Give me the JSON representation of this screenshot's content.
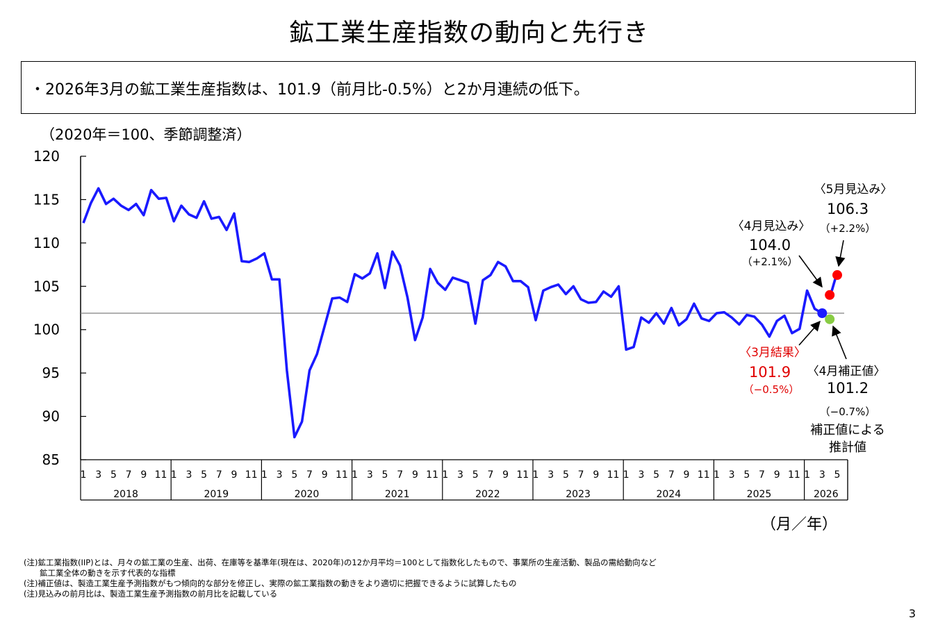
{
  "page": {
    "title": "鉱工業生産指数の動向と先行き",
    "summary": "・2026年3月の鉱工業生産指数は、101.9（前月比-0.5%）と2か月連続の低下。",
    "unit_label": "（2020年＝100、季節調整済）",
    "x_unit_label": "（月／年）",
    "notes": [
      "(注)鉱工業指数(IIP)とは、月々の鉱工業の生産、出荷、在庫等を基準年(現在は、2020年)の12か月平均＝100として指数化したもので、事業所の生産活動、製品の需給動向など",
      "　　鉱工業全体の動きを示す代表的な指標",
      "(注)補正値は、製造工業生産予測指数がもつ傾向的な部分を修正し、実際の鉱工業指数の動きをより適切に把握できるように試算したもの",
      "(注)見込みの前月比は、製造工業生産予測指数の前月比を記載している"
    ],
    "page_number": "3"
  },
  "chart_data": {
    "type": "line",
    "ylim": [
      85,
      120
    ],
    "yticks": [
      120,
      115,
      110,
      105,
      100,
      95,
      90,
      85
    ],
    "month_tick_labels": [
      "1",
      "3",
      "5",
      "7",
      "9",
      "11"
    ],
    "final_year_month_labels": [
      "1",
      "3",
      "5"
    ],
    "years": [
      "2018",
      "2019",
      "2020",
      "2021",
      "2022",
      "2023",
      "2024",
      "2025",
      "2026"
    ],
    "reference_line": 101.9,
    "colors": {
      "line": "#1a1aff",
      "grid": "#808080",
      "result": "#1a1aff",
      "forecast": "#ff0000",
      "adjusted": "#88cc44",
      "red_text": "#e00000"
    },
    "series": [
      {
        "values": [
          112.3,
          114.6,
          116.3,
          114.5,
          115.1,
          114.3,
          113.8,
          114.5,
          113.2,
          116.1,
          115.1,
          115.2,
          112.5,
          114.3,
          113.3,
          112.9,
          114.8,
          112.8,
          113.0,
          111.5,
          113.4,
          107.9,
          107.8,
          108.2,
          108.8,
          105.8,
          105.8,
          95.3,
          87.6,
          89.4,
          95.3,
          97.2,
          100.4,
          103.6,
          103.7,
          103.2,
          106.4,
          105.9,
          106.5,
          108.8,
          104.8,
          109.0,
          107.4,
          103.7,
          98.8,
          101.4,
          107.0,
          105.4,
          104.6,
          106.0,
          105.7,
          105.4,
          100.7,
          105.7,
          106.3,
          107.8,
          107.3,
          105.6,
          105.6,
          104.9,
          101.1,
          104.5,
          104.9,
          105.2,
          104.1,
          105.0,
          103.5,
          103.1,
          103.2,
          104.4,
          103.8,
          105.0,
          97.7,
          98.0,
          101.4,
          100.8,
          101.9,
          100.7,
          102.5,
          100.5,
          101.2,
          103.0,
          101.3,
          101.0,
          101.9,
          102.0,
          101.4,
          100.6,
          101.7,
          101.5,
          100.6,
          99.2,
          101.0,
          101.6,
          99.6,
          100.1,
          104.5,
          102.4,
          101.9
        ]
      }
    ],
    "forecast_segment": {
      "from": 104.0,
      "to": 106.3
    },
    "points": {
      "march_result": {
        "value": 101.9,
        "label": "〈3月結果〉",
        "value_text": "101.9",
        "change_text": "（−0.5%）"
      },
      "april_forecast": {
        "value": 104.0,
        "label": "〈4月見込み〉",
        "value_text": "104.0",
        "change_text": "（+2.1%）"
      },
      "may_forecast": {
        "value": 106.3,
        "label": "〈5月見込み〉",
        "value_text": "106.3",
        "change_text": "（+2.2%）"
      },
      "april_adjusted": {
        "value": 101.2,
        "label": "〈4月補正値〉",
        "value_text": "101.2",
        "change_text": "（−0.7%）",
        "note_line1": "補正値による",
        "note_line2": "推計値"
      }
    }
  }
}
